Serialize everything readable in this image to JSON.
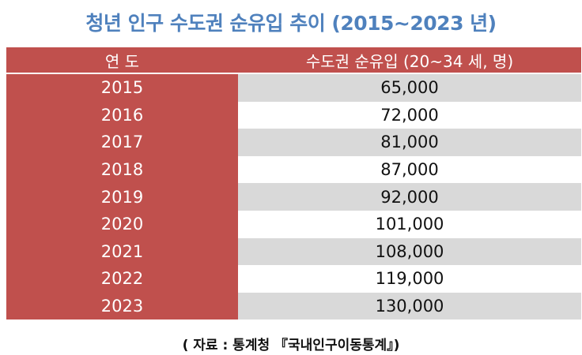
{
  "title": "청년 인구 수도권 순유입 추이 (2015~2023 년)",
  "table": {
    "headers": [
      "연 도",
      "수도권 순유입 (20~34 세, 명)"
    ],
    "rows": [
      {
        "year": "2015",
        "value": "65,000"
      },
      {
        "year": "2016",
        "value": "72,000"
      },
      {
        "year": "2017",
        "value": "81,000"
      },
      {
        "year": "2018",
        "value": "87,000"
      },
      {
        "year": "2019",
        "value": "92,000"
      },
      {
        "year": "2020",
        "value": "101,000"
      },
      {
        "year": "2021",
        "value": "108,000"
      },
      {
        "year": "2022",
        "value": "119,000"
      },
      {
        "year": "2023",
        "value": "130,000"
      }
    ]
  },
  "source": "( 자료 : 통계청 『국내인구이동통계』)",
  "colors": {
    "title": "#4f81bd",
    "header_and_year_column": "#c0504d",
    "shaded_row": "#d9d9d9"
  }
}
